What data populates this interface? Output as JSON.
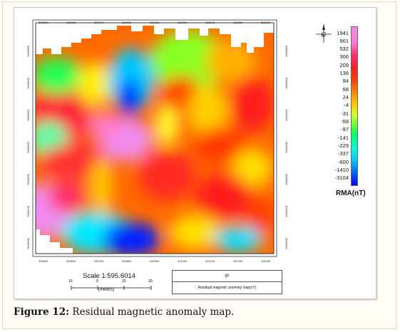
{
  "map": {
    "top_ticks": [
      "330500",
      "330600",
      "330700",
      "330800",
      "330900",
      "331000",
      "331100",
      "331200",
      "331300"
    ],
    "bottom_ticks": [
      "330500",
      "330600",
      "330700",
      "330800",
      "330900",
      "331000",
      "331100",
      "331200",
      "331300"
    ],
    "left_ticks": [
      "9543600",
      "9543500",
      "9543400",
      "9543300",
      "9543200",
      "9543100",
      "9543000"
    ],
    "right_ticks": [
      "9543600",
      "9543500",
      "9543400",
      "9543300",
      "9543200",
      "9543100",
      "9543000"
    ],
    "colors": {
      "low": "#0000ff",
      "high": "#f08cf0",
      "frame": "#333333"
    }
  },
  "legend": {
    "labels": [
      "1941",
      "961",
      "532",
      "306",
      "209",
      "136",
      "94",
      "58",
      "24",
      "-4",
      "-31",
      "-58",
      "-97",
      "-141",
      "-229",
      "-337",
      "-600",
      "-1410",
      "-3104"
    ],
    "title": "RMA(nT)"
  },
  "north_arrow": {
    "label": "N",
    "icon": "north-arrow-icon"
  },
  "scale": {
    "label": "Scale 1:595.6014",
    "ticks": [
      "10",
      "0",
      "10",
      "20"
    ],
    "units": "(meters)"
  },
  "title_box": {
    "top": "gc",
    "bottom": "Residual magnetic anomaly map(nT)"
  },
  "caption": {
    "label": "Figure 12:",
    "text": " Residual magnetic anomaly map."
  }
}
